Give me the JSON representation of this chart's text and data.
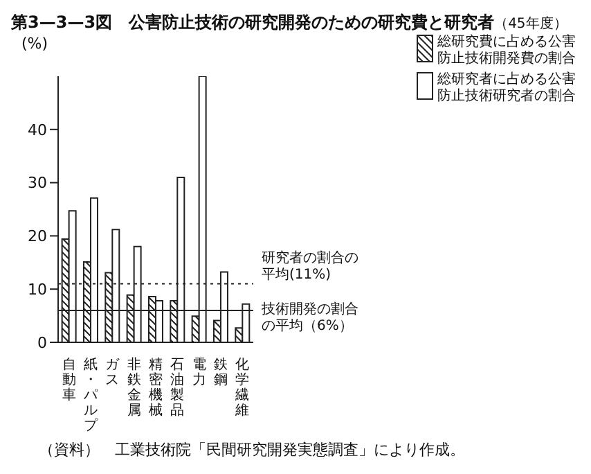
{
  "chart_data": {
    "type": "bar",
    "title": "第3—3—3図　公害防止技術の研究開発のための研究費と研究者",
    "subtitle": "（45年度）",
    "ylabel": "(%)",
    "categories": [
      "自動車",
      "紙・パルプ",
      "ガス",
      "非鉄金属",
      "精密機械",
      "石油製品",
      "電力",
      "鉄鋼",
      "化学繊維"
    ],
    "series": [
      {
        "name": "総研究費に占める公害防止技術開発費の割合",
        "color": "#222222",
        "values": [
          19.4,
          15.1,
          13.1,
          8.9,
          8.6,
          7.8,
          4.9,
          4.1,
          2.7
        ]
      },
      {
        "name": "総研究者に占める公害防止技術研究者の割合",
        "color": "#ffffff",
        "values": [
          24.7,
          27.1,
          21.2,
          18,
          7.8,
          31,
          50,
          13.2,
          7.2
        ]
      }
    ],
    "ylim": [
      0,
      50
    ],
    "yticks": [
      0,
      10,
      20,
      30,
      40
    ],
    "grid": false,
    "legend": "top right",
    "ref_lines": [
      {
        "axis": "y",
        "value": 11,
        "label": "研究者の割合の平均(11%)",
        "line_style": "dotted",
        "color": "#222222"
      },
      {
        "axis": "y",
        "value": 6,
        "label": "技術開発の割合の平均（6%）",
        "line_style": "solid",
        "color": "#222222"
      }
    ],
    "annotations": [
      "（資料）　工業技術院「民間研究開発実態調査」により作成。"
    ]
  }
}
